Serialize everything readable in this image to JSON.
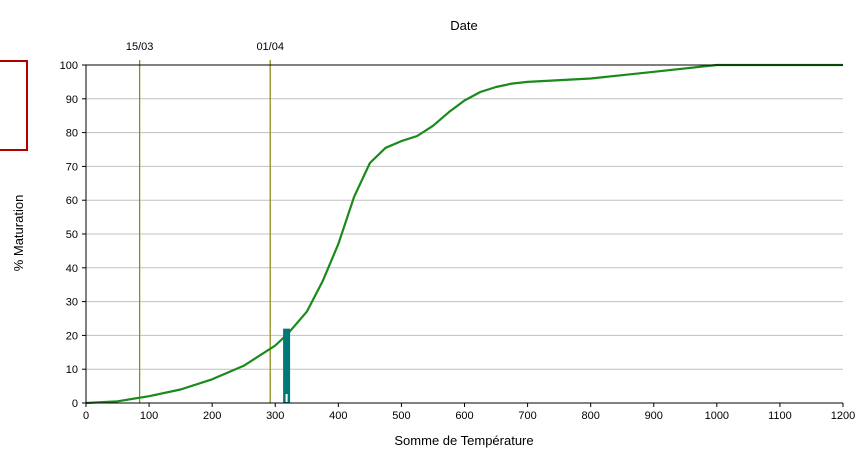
{
  "chart_data": {
    "type": "line",
    "title": "",
    "top_axis_title": "Date",
    "xlabel": "Somme de Température",
    "ylabel": "% Maturation",
    "xlim": [
      0,
      1200
    ],
    "ylim": [
      0,
      100
    ],
    "x_ticks": [
      0,
      100,
      200,
      300,
      400,
      500,
      600,
      700,
      800,
      900,
      1000,
      1100,
      1200
    ],
    "y_ticks": [
      0,
      10,
      20,
      30,
      40,
      50,
      60,
      70,
      80,
      90,
      100
    ],
    "grid": "horizontal",
    "date_markers": [
      {
        "label": "15/03",
        "x": 85
      },
      {
        "label": "01/04",
        "x": 292
      }
    ],
    "current_marker": {
      "x": 318,
      "y": 22
    },
    "series": [
      {
        "x": [
          0,
          50,
          100,
          150,
          200,
          250,
          300,
          320,
          350,
          375,
          400,
          425,
          450,
          475,
          500,
          525,
          550,
          575,
          600,
          625,
          650,
          675,
          700,
          800,
          900,
          1000,
          1100,
          1200
        ],
        "y": [
          0,
          0.5,
          2,
          4,
          7,
          11,
          17,
          20.5,
          27,
          36,
          47,
          61,
          71,
          75.5,
          77.5,
          79,
          82,
          86,
          89.5,
          92,
          93.5,
          94.5,
          95,
          96,
          98,
          100,
          100,
          100
        ]
      }
    ],
    "colors": {
      "curve": "#1a8a1a",
      "date_line": "#8c8c1a",
      "marker": "#007878",
      "grid": "#c0c0c0",
      "legend_box": "#b00000"
    }
  }
}
